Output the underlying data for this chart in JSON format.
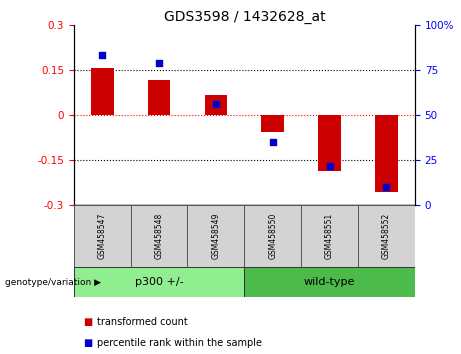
{
  "title": "GDS3598 / 1432628_at",
  "samples": [
    "GSM458547",
    "GSM458548",
    "GSM458549",
    "GSM458550",
    "GSM458551",
    "GSM458552"
  ],
  "bar_values": [
    0.155,
    0.115,
    0.065,
    -0.055,
    -0.185,
    -0.255
  ],
  "dot_values": [
    83,
    79,
    56,
    35,
    22,
    10
  ],
  "bar_color": "#cc0000",
  "dot_color": "#0000cc",
  "ylim_left": [
    -0.3,
    0.3
  ],
  "ylim_right": [
    0,
    100
  ],
  "yticks_left": [
    -0.3,
    -0.15,
    0,
    0.15,
    0.3
  ],
  "yticks_right": [
    0,
    25,
    50,
    75,
    100
  ],
  "bar_width": 0.4,
  "group1_label": "p300 +/-",
  "group2_label": "wild-type",
  "group1_color": "#90EE90",
  "group2_color": "#4CBB4C",
  "sample_box_color": "#d3d3d3",
  "legend_items": [
    "transformed count",
    "percentile rank within the sample"
  ],
  "legend_colors": [
    "#cc0000",
    "#0000cc"
  ],
  "genotype_label": "genotype/variation"
}
